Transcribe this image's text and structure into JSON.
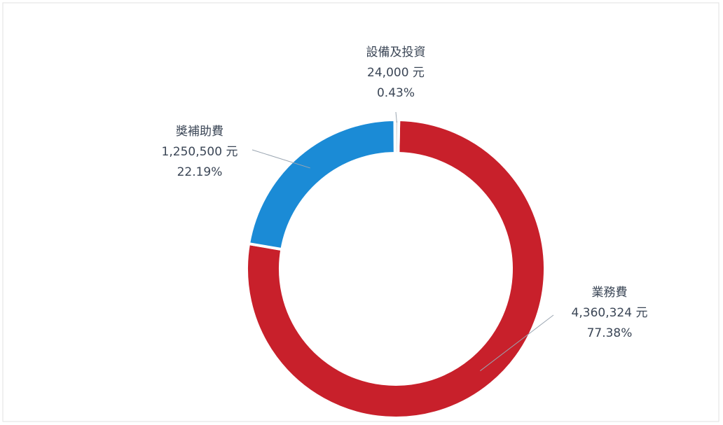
{
  "chart_data": {
    "type": "donut",
    "categories": [
      "業務費",
      "獎補助費",
      "設備及投資"
    ],
    "values": [
      4360324,
      1250500,
      24000
    ],
    "value_labels": [
      "4,360,324 元",
      "1,250,500 元",
      "24,000 元"
    ],
    "percentage_labels": [
      "77.38%",
      "22.19%",
      "0.43%"
    ],
    "colors": [
      "#c8202b",
      "#1b8bd6",
      "#d8d8d8"
    ]
  }
}
